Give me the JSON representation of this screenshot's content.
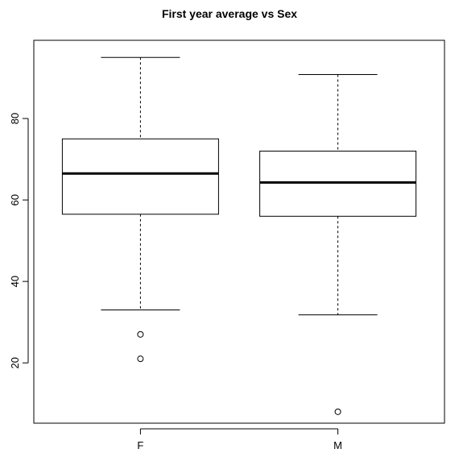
{
  "chart_data": {
    "type": "boxplot",
    "title": "First year average vs Sex",
    "xlabel": "",
    "ylabel": "",
    "categories": [
      "F",
      "M"
    ],
    "boxes": [
      {
        "category": "F",
        "whisker_low": 33,
        "q1": 56.5,
        "median": 66.5,
        "q3": 75,
        "whisker_high": 95,
        "outliers": [
          27,
          21
        ]
      },
      {
        "category": "M",
        "whisker_low": 31.8,
        "q1": 56,
        "median": 64.3,
        "q3": 72,
        "whisker_high": 90.8,
        "outliers": [
          8
        ]
      }
    ],
    "yticks": [
      20,
      40,
      60,
      80
    ],
    "ylim": [
      5.2,
      99.2
    ],
    "grid": false,
    "legend": "none"
  }
}
